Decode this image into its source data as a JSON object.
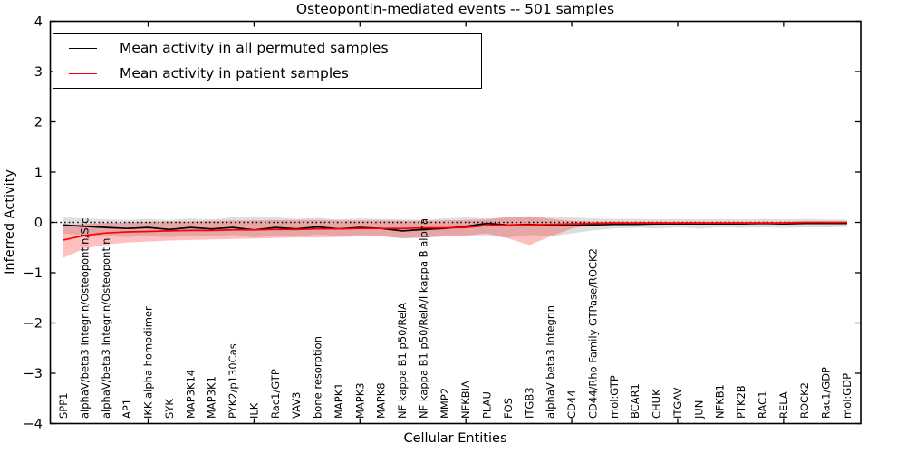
{
  "title": "Osteopontin-mediated events -- 501 samples",
  "axes": {
    "ylabel": "Inferred Activity",
    "xlabel": "Cellular Entities",
    "ylim": [
      -4,
      4
    ],
    "yticks": [
      4,
      3,
      2,
      1,
      0,
      -1,
      -2,
      -3,
      -4
    ],
    "grid": false
  },
  "legend": {
    "position": "upper left",
    "items": [
      {
        "label": "Mean activity in all permuted samples",
        "color": "#000000"
      },
      {
        "label": "Mean activity in patient samples",
        "color": "#ff0000"
      }
    ]
  },
  "colors": {
    "permuted_line": "#000000",
    "patient_line": "#ff0000",
    "permuted_band": "rgba(0,0,0,0.13)",
    "patient_band": "rgba(255,0,0,0.25)",
    "baseline": "#000000",
    "background": "#ffffff"
  },
  "chart_data": {
    "type": "line",
    "title": "Osteopontin-mediated events -- 501 samples",
    "xlabel": "Cellular Entities",
    "ylabel": "Inferred Activity",
    "ylim": [
      -4,
      4
    ],
    "yticks": [
      4,
      3,
      2,
      1,
      0,
      -1,
      -2,
      -3,
      -4
    ],
    "baseline": 0,
    "legend_position": "upper left",
    "grid": false,
    "categories": [
      "SPP1",
      "alphaV/beta3 Integrin/Osteopontin/Src",
      "alphaV/beta3 Integrin/Osteopontin",
      "AP1",
      "IKK alpha homodimer",
      "SYK",
      "MAP3K14",
      "MAP3K1",
      "PYK2/p130Cas",
      "ILK",
      "Rac1/GTP",
      "VAV3",
      "bone resorption",
      "MAPK1",
      "MAPK3",
      "MAPK8",
      "NF kappa B1 p50/RelA",
      "NF kappa B1 p50/RelA/I kappa B alpha",
      "MMP2",
      "NFKBIA",
      "PLAU",
      "FOS",
      "ITGB3",
      "alphaV beta3 Integrin",
      "CD44",
      "CD44/Rho Family GTPase/ROCK2",
      "mol:GTP",
      "BCAR1",
      "CHUK",
      "ITGAV",
      "JUN",
      "NFKB1",
      "PTK2B",
      "RAC1",
      "RELA",
      "ROCK2",
      "Rac1/GDP",
      "mol:GDP"
    ],
    "series": [
      {
        "name": "Mean activity in all permuted samples",
        "color": "#000000",
        "values": [
          -0.05,
          -0.08,
          -0.1,
          -0.12,
          -0.1,
          -0.14,
          -0.1,
          -0.13,
          -0.1,
          -0.15,
          -0.1,
          -0.13,
          -0.09,
          -0.13,
          -0.1,
          -0.12,
          -0.17,
          -0.14,
          -0.12,
          -0.08,
          -0.02,
          -0.05,
          -0.04,
          -0.06,
          -0.05,
          -0.05,
          -0.04,
          -0.04,
          -0.03,
          -0.03,
          -0.03,
          -0.03,
          -0.03,
          -0.02,
          -0.03,
          -0.02,
          -0.02,
          -0.02
        ],
        "band_low": [
          -0.22,
          -0.25,
          -0.27,
          -0.29,
          -0.27,
          -0.29,
          -0.26,
          -0.28,
          -0.25,
          -0.3,
          -0.26,
          -0.28,
          -0.24,
          -0.27,
          -0.25,
          -0.27,
          -0.32,
          -0.3,
          -0.28,
          -0.26,
          -0.27,
          -0.3,
          -0.25,
          -0.28,
          -0.22,
          -0.16,
          -0.12,
          -0.11,
          -0.12,
          -0.1,
          -0.12,
          -0.1,
          -0.11,
          -0.1,
          -0.11,
          -0.1,
          -0.1,
          -0.09
        ],
        "band_high": [
          0.1,
          0.08,
          0.06,
          0.05,
          0.07,
          0.05,
          0.08,
          0.06,
          0.1,
          0.12,
          0.1,
          0.07,
          0.09,
          0.06,
          0.08,
          0.07,
          0.06,
          0.05,
          0.08,
          0.1,
          0.08,
          0.1,
          0.12,
          0.1,
          0.1,
          0.08,
          0.07,
          0.07,
          0.06,
          0.07,
          0.06,
          0.07,
          0.06,
          0.07,
          0.06,
          0.07,
          0.06,
          0.06
        ]
      },
      {
        "name": "Mean activity in patient samples",
        "color": "#ff0000",
        "values": [
          -0.35,
          -0.26,
          -0.21,
          -0.19,
          -0.18,
          -0.17,
          -0.16,
          -0.16,
          -0.15,
          -0.15,
          -0.14,
          -0.14,
          -0.13,
          -0.13,
          -0.12,
          -0.12,
          -0.12,
          -0.11,
          -0.11,
          -0.1,
          -0.06,
          -0.05,
          -0.05,
          -0.04,
          -0.03,
          -0.02,
          -0.01,
          -0.01,
          -0.01,
          -0.01,
          -0.01,
          -0.01,
          -0.01,
          -0.01,
          -0.01,
          0.0,
          0.0,
          0.0
        ],
        "band_low": [
          -0.7,
          -0.52,
          -0.44,
          -0.4,
          -0.38,
          -0.36,
          -0.35,
          -0.34,
          -0.33,
          -0.32,
          -0.31,
          -0.3,
          -0.3,
          -0.29,
          -0.28,
          -0.28,
          -0.31,
          -0.3,
          -0.28,
          -0.26,
          -0.22,
          -0.32,
          -0.45,
          -0.28,
          -0.12,
          -0.05,
          -0.03,
          -0.03,
          -0.02,
          -0.02,
          -0.02,
          -0.02,
          -0.02,
          -0.02,
          -0.02,
          -0.01,
          -0.01,
          -0.01
        ],
        "band_high": [
          -0.05,
          -0.03,
          -0.01,
          0.0,
          0.01,
          0.02,
          0.02,
          0.03,
          0.04,
          0.04,
          0.05,
          0.05,
          0.05,
          0.04,
          0.04,
          0.04,
          0.03,
          0.03,
          0.04,
          0.05,
          0.06,
          0.11,
          0.12,
          0.07,
          0.03,
          0.02,
          0.01,
          0.01,
          0.01,
          0.01,
          0.01,
          0.01,
          0.01,
          0.01,
          0.01,
          0.01,
          0.01,
          0.01
        ]
      }
    ]
  }
}
